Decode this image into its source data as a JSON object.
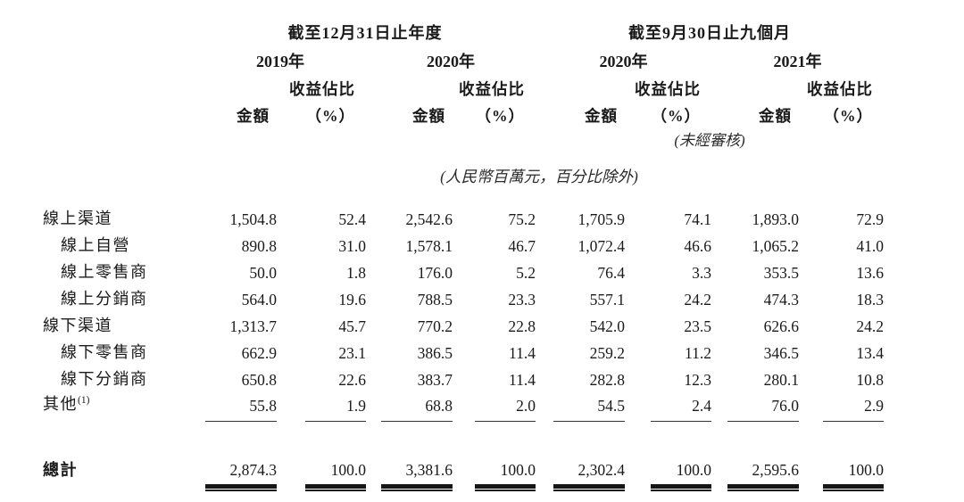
{
  "page": {
    "background_color": "#ffffff",
    "text_color": "#1a1a1a"
  },
  "table": {
    "period_groups": [
      {
        "title": "截至12月31日止年度",
        "years": [
          "2019年",
          "2020年"
        ]
      },
      {
        "title": "截至9月30日止九個月",
        "years": [
          "2020年",
          "2021年"
        ]
      }
    ],
    "column_headers": {
      "amount": "金額",
      "share_line1": "收益佔比",
      "share_line2": "（%）"
    },
    "unaudited_note": "(未經審核)",
    "unit_note": "(人民幣百萬元，百分比除外)",
    "rows": [
      {
        "label": "線上渠道",
        "indent": false,
        "underline": false,
        "values": [
          "1,504.8",
          "52.4",
          "2,542.6",
          "75.2",
          "1,705.9",
          "74.1",
          "1,893.0",
          "72.9"
        ]
      },
      {
        "label": "線上自營",
        "indent": true,
        "underline": false,
        "values": [
          "890.8",
          "31.0",
          "1,578.1",
          "46.7",
          "1,072.4",
          "46.6",
          "1,065.2",
          "41.0"
        ]
      },
      {
        "label": "線上零售商",
        "indent": true,
        "underline": false,
        "values": [
          "50.0",
          "1.8",
          "176.0",
          "5.2",
          "76.4",
          "3.3",
          "353.5",
          "13.6"
        ]
      },
      {
        "label": "線上分銷商",
        "indent": true,
        "underline": false,
        "values": [
          "564.0",
          "19.6",
          "788.5",
          "23.3",
          "557.1",
          "24.2",
          "474.3",
          "18.3"
        ]
      },
      {
        "label": "線下渠道",
        "indent": false,
        "underline": false,
        "values": [
          "1,313.7",
          "45.7",
          "770.2",
          "22.8",
          "542.0",
          "23.5",
          "626.6",
          "24.2"
        ]
      },
      {
        "label": "線下零售商",
        "indent": true,
        "underline": false,
        "values": [
          "662.9",
          "23.1",
          "386.5",
          "11.4",
          "259.2",
          "11.2",
          "346.5",
          "13.4"
        ]
      },
      {
        "label": "線下分銷商",
        "indent": true,
        "underline": false,
        "values": [
          "650.8",
          "22.6",
          "383.7",
          "11.4",
          "282.8",
          "12.3",
          "280.1",
          "10.8"
        ]
      },
      {
        "label": "其他",
        "footnote": "(1)",
        "indent": false,
        "underline": true,
        "values": [
          "55.8",
          "1.9",
          "68.8",
          "2.0",
          "54.5",
          "2.4",
          "76.0",
          "2.9"
        ]
      }
    ],
    "total_row": {
      "label": "總計",
      "values": [
        "2,874.3",
        "100.0",
        "3,381.6",
        "100.0",
        "2,302.4",
        "100.0",
        "2,595.6",
        "100.0"
      ]
    }
  }
}
